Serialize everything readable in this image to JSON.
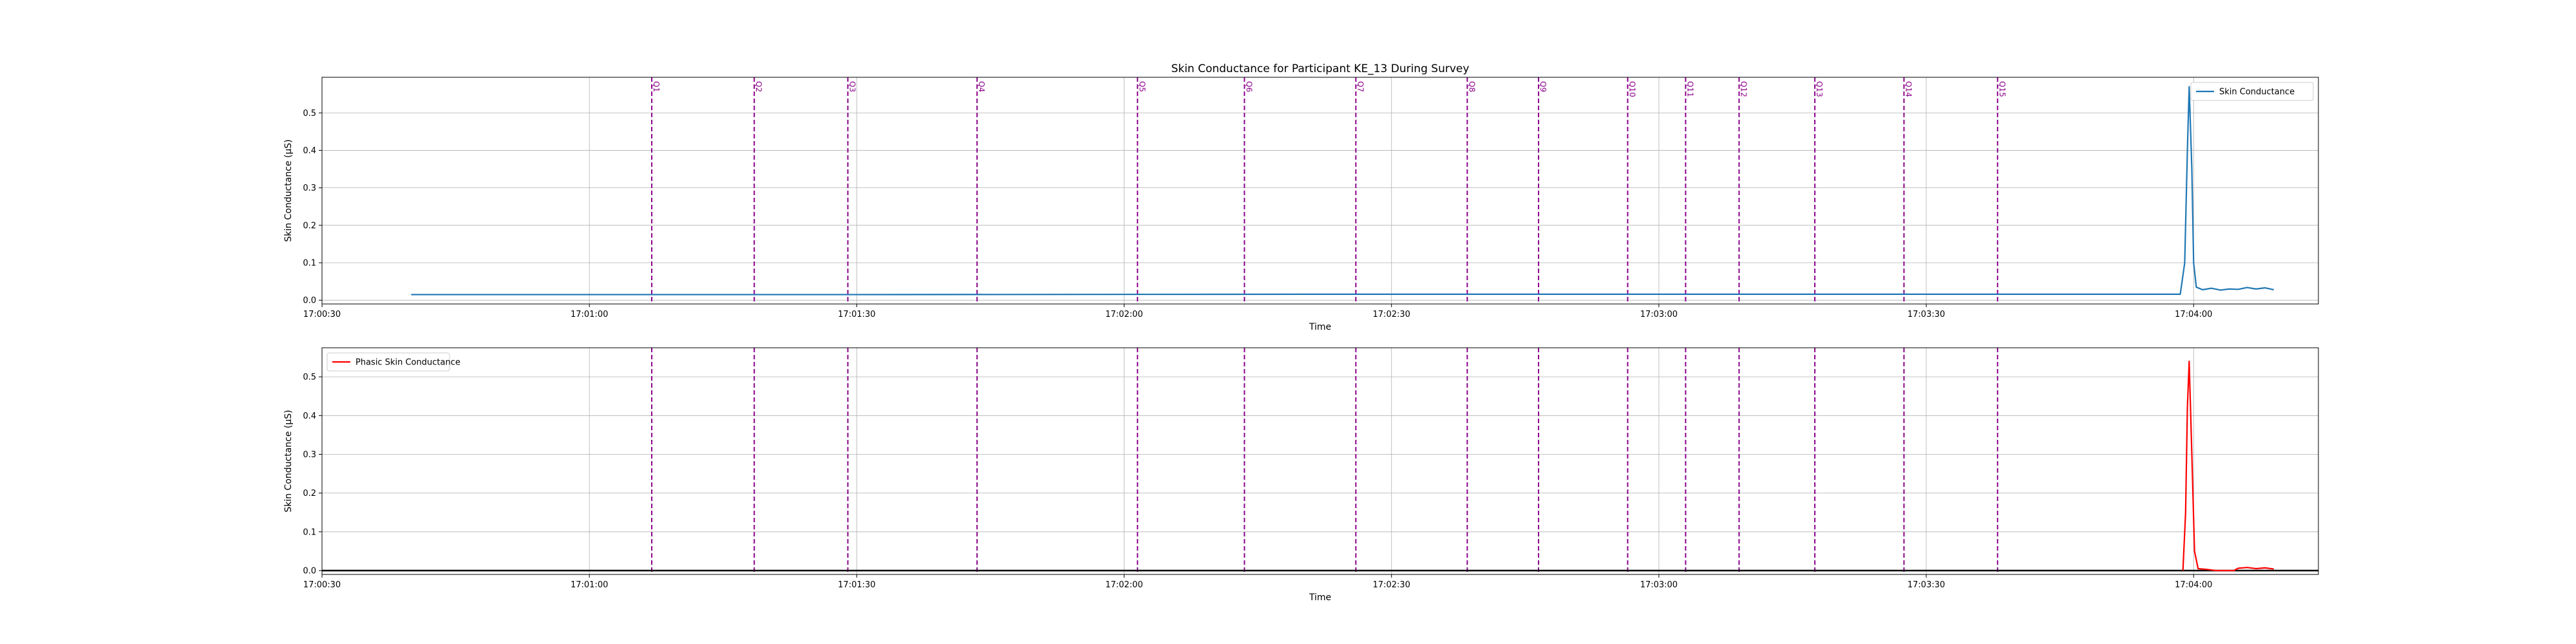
{
  "figure": {
    "title": "Skin Conductance for Participant KE_13 During Survey"
  },
  "chart_data": [
    {
      "type": "line",
      "title": "Skin Conductance for Participant KE_13 During Survey",
      "xlabel": "Time",
      "ylabel": "Skin Conductance (μS)",
      "x_ticks": [
        "17:00:30",
        "17:01:00",
        "17:01:30",
        "17:02:00",
        "17:02:30",
        "17:03:00",
        "17:03:30",
        "17:04:00"
      ],
      "y_ticks": [
        "0.0",
        "0.1",
        "0.2",
        "0.3",
        "0.4",
        "0.5"
      ],
      "xlim": [
        "17:00:30",
        "17:04:14"
      ],
      "ylim": [
        -0.01,
        0.595
      ],
      "grid": true,
      "legend": "top-right",
      "series": [
        {
          "name": "Skin Conductance",
          "color": "#1f77b4",
          "points": [
            [
              "17:00:40",
              0.015
            ],
            [
              "17:01:30",
              0.015
            ],
            [
              "17:02:20",
              0.016
            ],
            [
              "17:03:00",
              0.016
            ],
            [
              "17:03:50",
              0.016
            ],
            [
              "17:03:58.5",
              0.016
            ],
            [
              "17:03:59",
              0.1
            ],
            [
              "17:03:59.3",
              0.4
            ],
            [
              "17:03:59.5",
              0.57
            ],
            [
              "17:03:59.8",
              0.35
            ],
            [
              "17:04:00",
              0.1
            ],
            [
              "17:04:00.3",
              0.035
            ],
            [
              "17:04:01",
              0.028
            ],
            [
              "17:04:02",
              0.032
            ],
            [
              "17:04:03",
              0.027
            ],
            [
              "17:04:04",
              0.03
            ],
            [
              "17:04:05",
              0.029
            ],
            [
              "17:04:06",
              0.034
            ],
            [
              "17:04:07",
              0.03
            ],
            [
              "17:04:08",
              0.033
            ],
            [
              "17:04:09",
              0.028
            ]
          ]
        }
      ],
      "markers": [
        {
          "label": "Q1",
          "time": "17:01:07"
        },
        {
          "label": "Q2",
          "time": "17:01:18.5"
        },
        {
          "label": "Q3",
          "time": "17:01:29"
        },
        {
          "label": "Q4",
          "time": "17:01:43.5"
        },
        {
          "label": "Q5",
          "time": "17:02:01.5"
        },
        {
          "label": "Q6",
          "time": "17:02:13.5"
        },
        {
          "label": "Q7",
          "time": "17:02:26"
        },
        {
          "label": "Q8",
          "time": "17:02:38.5"
        },
        {
          "label": "Q9",
          "time": "17:02:46.5"
        },
        {
          "label": "Q10",
          "time": "17:02:56.5"
        },
        {
          "label": "Q11",
          "time": "17:03:03"
        },
        {
          "label": "Q12",
          "time": "17:03:09"
        },
        {
          "label": "Q13",
          "time": "17:03:17.5"
        },
        {
          "label": "Q14",
          "time": "17:03:27.5"
        },
        {
          "label": "Q15",
          "time": "17:03:38"
        }
      ],
      "marker_color": "#8b008b"
    },
    {
      "type": "line",
      "title": "",
      "xlabel": "Time",
      "ylabel": "Skin Conductance (μS)",
      "x_ticks": [
        "17:00:30",
        "17:01:00",
        "17:01:30",
        "17:02:00",
        "17:02:30",
        "17:03:00",
        "17:03:30",
        "17:04:00"
      ],
      "y_ticks": [
        "0.0",
        "0.1",
        "0.2",
        "0.3",
        "0.4",
        "0.5"
      ],
      "xlim": [
        "17:00:30",
        "17:04:14"
      ],
      "ylim": [
        -0.01,
        0.575
      ],
      "grid": true,
      "legend": "top-left",
      "baseline": 0.0,
      "series": [
        {
          "name": "Phasic Skin Conductance",
          "color": "#ff0000",
          "points": [
            [
              "17:03:58.8",
              0.0
            ],
            [
              "17:03:59.1",
              0.15
            ],
            [
              "17:03:59.3",
              0.42
            ],
            [
              "17:03:59.5",
              0.54
            ],
            [
              "17:03:59.8",
              0.3
            ],
            [
              "17:04:00.1",
              0.05
            ],
            [
              "17:04:00.5",
              0.005
            ],
            [
              "17:04:01.5",
              0.003
            ],
            [
              "17:04:02.5",
              0.0
            ],
            [
              "17:04:04.5",
              0.0
            ],
            [
              "17:04:05",
              0.006
            ],
            [
              "17:04:06",
              0.008
            ],
            [
              "17:04:07",
              0.005
            ],
            [
              "17:04:08",
              0.007
            ],
            [
              "17:04:09",
              0.004
            ]
          ]
        }
      ],
      "markers": [
        {
          "label": "Q1",
          "time": "17:01:07"
        },
        {
          "label": "Q2",
          "time": "17:01:18.5"
        },
        {
          "label": "Q3",
          "time": "17:01:29"
        },
        {
          "label": "Q4",
          "time": "17:01:43.5"
        },
        {
          "label": "Q5",
          "time": "17:02:01.5"
        },
        {
          "label": "Q6",
          "time": "17:02:13.5"
        },
        {
          "label": "Q7",
          "time": "17:02:26"
        },
        {
          "label": "Q8",
          "time": "17:02:38.5"
        },
        {
          "label": "Q9",
          "time": "17:02:46.5"
        },
        {
          "label": "Q10",
          "time": "17:02:56.5"
        },
        {
          "label": "Q11",
          "time": "17:03:03"
        },
        {
          "label": "Q12",
          "time": "17:03:09"
        },
        {
          "label": "Q13",
          "time": "17:03:17.5"
        },
        {
          "label": "Q14",
          "time": "17:03:27.5"
        },
        {
          "label": "Q15",
          "time": "17:03:38"
        }
      ],
      "marker_color": "#8b008b"
    }
  ]
}
